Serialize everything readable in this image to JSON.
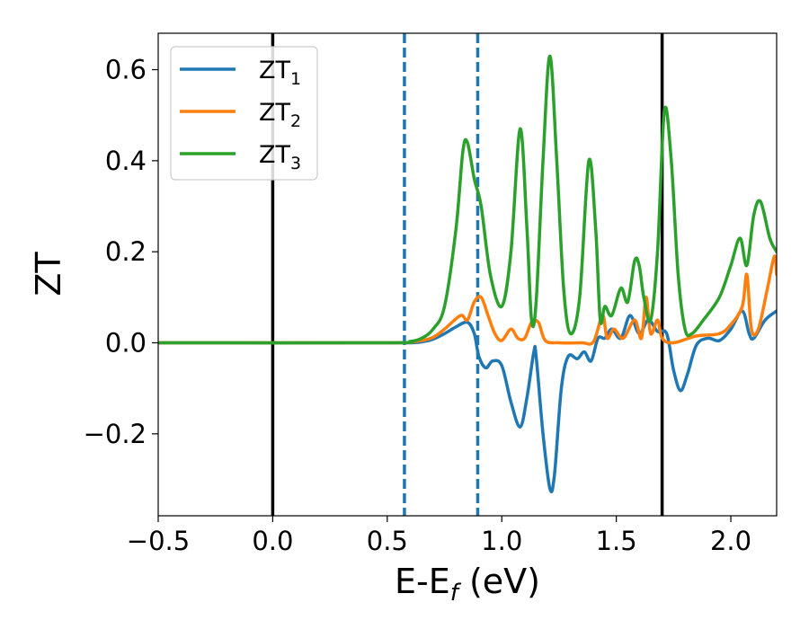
{
  "chart_data": {
    "type": "line",
    "title": "",
    "xlabel": {
      "base": "E-E",
      "sub": "f",
      "unit": " (eV)"
    },
    "ylabel": "ZT",
    "xlim": [
      -0.5,
      2.2
    ],
    "ylim": [
      -0.38,
      0.68
    ],
    "x_ticks": [
      -0.5,
      0.0,
      0.5,
      1.0,
      1.5,
      2.0
    ],
    "x_tick_labels": [
      "−0.5",
      "0.0",
      "0.5",
      "1.0",
      "1.5",
      "2.0"
    ],
    "y_ticks": [
      -0.2,
      0.0,
      0.2,
      0.4,
      0.6
    ],
    "y_tick_labels": [
      "−0.2",
      "0.0",
      "0.2",
      "0.4",
      "0.6"
    ],
    "grid": false,
    "legend_position": "top-left",
    "vlines": [
      {
        "x": 0.0,
        "style": "solid",
        "color": "#000000"
      },
      {
        "x": 1.7,
        "style": "solid",
        "color": "#000000"
      },
      {
        "x": 0.575,
        "style": "dashed",
        "color": "#1f77b4"
      },
      {
        "x": 0.895,
        "style": "dashed",
        "color": "#1f77b4"
      }
    ],
    "series": [
      {
        "name": {
          "base": "ZT",
          "sub": "1"
        },
        "color": "#1f77b4",
        "points": [
          [
            -0.5,
            0
          ],
          [
            0.5,
            0
          ],
          [
            0.6,
            0
          ],
          [
            0.65,
            0.002
          ],
          [
            0.7,
            0.008
          ],
          [
            0.75,
            0.02
          ],
          [
            0.8,
            0.035
          ],
          [
            0.85,
            0.045
          ],
          [
            0.88,
            0.02
          ],
          [
            0.9,
            -0.03
          ],
          [
            0.93,
            -0.055
          ],
          [
            0.96,
            -0.04
          ],
          [
            1.0,
            -0.05
          ],
          [
            1.04,
            -0.13
          ],
          [
            1.08,
            -0.185
          ],
          [
            1.11,
            -0.12
          ],
          [
            1.14,
            -0.02
          ],
          [
            1.15,
            -0.03
          ],
          [
            1.18,
            -0.2
          ],
          [
            1.21,
            -0.32
          ],
          [
            1.23,
            -0.29
          ],
          [
            1.26,
            -0.1
          ],
          [
            1.29,
            -0.03
          ],
          [
            1.33,
            -0.035
          ],
          [
            1.36,
            -0.02
          ],
          [
            1.39,
            -0.04
          ],
          [
            1.42,
            0.01
          ],
          [
            1.45,
            0.01
          ],
          [
            1.48,
            0.03
          ],
          [
            1.52,
            0.01
          ],
          [
            1.56,
            0.06
          ],
          [
            1.6,
            0.02
          ],
          [
            1.64,
            0.05
          ],
          [
            1.68,
            0.025
          ],
          [
            1.72,
            0.02
          ],
          [
            1.75,
            -0.06
          ],
          [
            1.78,
            -0.105
          ],
          [
            1.81,
            -0.07
          ],
          [
            1.85,
            -0.005
          ],
          [
            1.9,
            0.01
          ],
          [
            1.95,
            0.005
          ],
          [
            2.0,
            0.03
          ],
          [
            2.05,
            0.07
          ],
          [
            2.08,
            0.02
          ],
          [
            2.1,
            0.01
          ],
          [
            2.15,
            0.05
          ],
          [
            2.2,
            0.07
          ]
        ]
      },
      {
        "name": {
          "base": "ZT",
          "sub": "2"
        },
        "color": "#ff7f0e",
        "points": [
          [
            -0.5,
            0
          ],
          [
            0.5,
            0
          ],
          [
            0.6,
            0.002
          ],
          [
            0.65,
            0.005
          ],
          [
            0.7,
            0.012
          ],
          [
            0.75,
            0.03
          ],
          [
            0.82,
            0.06
          ],
          [
            0.85,
            0.05
          ],
          [
            0.88,
            0.09
          ],
          [
            0.91,
            0.1
          ],
          [
            0.94,
            0.06
          ],
          [
            0.97,
            0.02
          ],
          [
            1.0,
            0.005
          ],
          [
            1.04,
            0.03
          ],
          [
            1.07,
            0.01
          ],
          [
            1.1,
            0.01
          ],
          [
            1.13,
            0.045
          ],
          [
            1.16,
            0.045
          ],
          [
            1.19,
            0.005
          ],
          [
            1.25,
            0.0
          ],
          [
            1.35,
            0.0
          ],
          [
            1.4,
            0.002
          ],
          [
            1.44,
            0.06
          ],
          [
            1.46,
            0.01
          ],
          [
            1.49,
            0.03
          ],
          [
            1.53,
            0.01
          ],
          [
            1.58,
            0.05
          ],
          [
            1.61,
            0.01
          ],
          [
            1.63,
            0.1
          ],
          [
            1.65,
            0.02
          ],
          [
            1.68,
            0.05
          ],
          [
            1.7,
            0.01
          ],
          [
            1.75,
            0.0
          ],
          [
            1.85,
            0.015
          ],
          [
            1.95,
            0.02
          ],
          [
            2.0,
            0.04
          ],
          [
            2.05,
            0.08
          ],
          [
            2.07,
            0.15
          ],
          [
            2.09,
            0.03
          ],
          [
            2.12,
            0.03
          ],
          [
            2.16,
            0.12
          ],
          [
            2.19,
            0.19
          ],
          [
            2.2,
            0.15
          ]
        ]
      },
      {
        "name": {
          "base": "ZT",
          "sub": "3"
        },
        "color": "#2ca02c",
        "points": [
          [
            -0.5,
            0
          ],
          [
            0.5,
            0
          ],
          [
            0.6,
            0.003
          ],
          [
            0.65,
            0.01
          ],
          [
            0.7,
            0.03
          ],
          [
            0.75,
            0.08
          ],
          [
            0.8,
            0.25
          ],
          [
            0.83,
            0.42
          ],
          [
            0.85,
            0.44
          ],
          [
            0.88,
            0.36
          ],
          [
            0.91,
            0.3
          ],
          [
            0.95,
            0.15
          ],
          [
            1.0,
            0.08
          ],
          [
            1.04,
            0.2
          ],
          [
            1.08,
            0.47
          ],
          [
            1.11,
            0.25
          ],
          [
            1.13,
            0.05
          ],
          [
            1.15,
            0.09
          ],
          [
            1.18,
            0.4
          ],
          [
            1.21,
            0.63
          ],
          [
            1.24,
            0.4
          ],
          [
            1.27,
            0.12
          ],
          [
            1.3,
            0.02
          ],
          [
            1.34,
            0.1
          ],
          [
            1.38,
            0.4
          ],
          [
            1.41,
            0.25
          ],
          [
            1.43,
            0.05
          ],
          [
            1.45,
            0.08
          ],
          [
            1.48,
            0.06
          ],
          [
            1.52,
            0.12
          ],
          [
            1.55,
            0.09
          ],
          [
            1.58,
            0.18
          ],
          [
            1.6,
            0.17
          ],
          [
            1.62,
            0.1
          ],
          [
            1.65,
            0.05
          ],
          [
            1.68,
            0.2
          ],
          [
            1.71,
            0.51
          ],
          [
            1.74,
            0.4
          ],
          [
            1.77,
            0.15
          ],
          [
            1.8,
            0.03
          ],
          [
            1.83,
            0.02
          ],
          [
            1.88,
            0.05
          ],
          [
            1.95,
            0.1
          ],
          [
            2.0,
            0.17
          ],
          [
            2.04,
            0.23
          ],
          [
            2.07,
            0.17
          ],
          [
            2.1,
            0.28
          ],
          [
            2.13,
            0.31
          ],
          [
            2.17,
            0.23
          ],
          [
            2.2,
            0.2
          ]
        ]
      }
    ]
  }
}
